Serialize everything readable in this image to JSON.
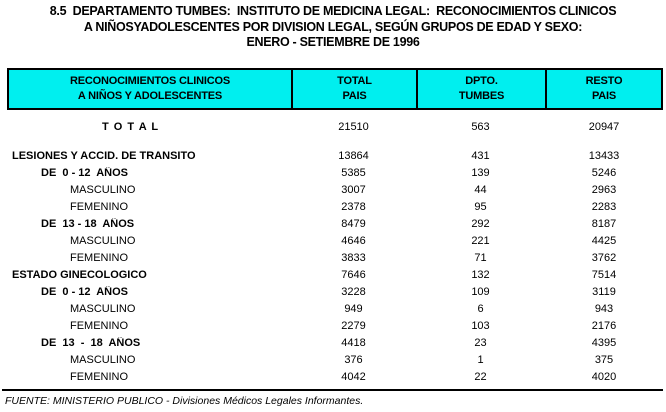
{
  "title": {
    "line1": "8.5  DEPARTAMENTO TUMBES:  INSTITUTO DE MEDICINA LEGAL:  RECONOCIMIENTOS CLINICOS",
    "line2": "A NIÑOSYADOLESCENTES POR DIVISION LEGAL, SEGÚN GRUPOS DE EDAD Y SEXO:",
    "line3": "ENERO - SETIEMBRE DE 1996"
  },
  "table": {
    "columns": [
      {
        "line1": "RECONOCIMIENTOS CLINICOS",
        "line2": "A NIÑOS Y ADOLESCENTES"
      },
      {
        "line1": "TOTAL",
        "line2": "PAIS"
      },
      {
        "line1": "DPTO.",
        "line2": "TUMBES"
      },
      {
        "line1": "RESTO",
        "line2": "PAIS"
      }
    ],
    "rows": [
      {
        "label": "T O T A L",
        "style": "total",
        "values": [
          "21510",
          "563",
          "20947"
        ]
      },
      {
        "label": "LESIONES Y ACCID. DE TRANSITO",
        "style": "group",
        "values": [
          "13864",
          "431",
          "13433"
        ]
      },
      {
        "label": "DE  0 - 12  AÑOS",
        "style": "age",
        "values": [
          "5385",
          "139",
          "5246"
        ]
      },
      {
        "label": "MASCULINO",
        "style": "sex",
        "values": [
          "3007",
          "44",
          "2963"
        ]
      },
      {
        "label": "FEMENINO",
        "style": "sex",
        "values": [
          "2378",
          "95",
          "2283"
        ]
      },
      {
        "label": "DE  13 - 18  AÑOS",
        "style": "age",
        "values": [
          "8479",
          "292",
          "8187"
        ]
      },
      {
        "label": "MASCULINO",
        "style": "sex",
        "values": [
          "4646",
          "221",
          "4425"
        ]
      },
      {
        "label": "FEMENINO",
        "style": "sex",
        "values": [
          "3833",
          "71",
          "3762"
        ]
      },
      {
        "label": "ESTADO GINECOLOGICO",
        "style": "group",
        "values": [
          "7646",
          "132",
          "7514"
        ]
      },
      {
        "label": "DE  0 - 12  AÑOS",
        "style": "age",
        "values": [
          "3228",
          "109",
          "3119"
        ]
      },
      {
        "label": "MASCULINO",
        "style": "sex",
        "values": [
          "949",
          "6",
          "943"
        ]
      },
      {
        "label": "FEMENINO",
        "style": "sex",
        "values": [
          "2279",
          "103",
          "2176"
        ]
      },
      {
        "label": "DE  13  -  18  AÑOS",
        "style": "age",
        "values": [
          "4418",
          "23",
          "4395"
        ]
      },
      {
        "label": "MASCULINO",
        "style": "sex",
        "values": [
          "376",
          "1",
          "375"
        ]
      },
      {
        "label": "FEMENINO",
        "style": "sex",
        "values": [
          "4042",
          "22",
          "4020"
        ]
      }
    ]
  },
  "footer": {
    "source": "FUENTE: MINISTERIO PUBLICO - Divisiones Médicos Legales Informantes."
  },
  "colors": {
    "header_bg": "#00EFEF",
    "border": "#000000"
  }
}
